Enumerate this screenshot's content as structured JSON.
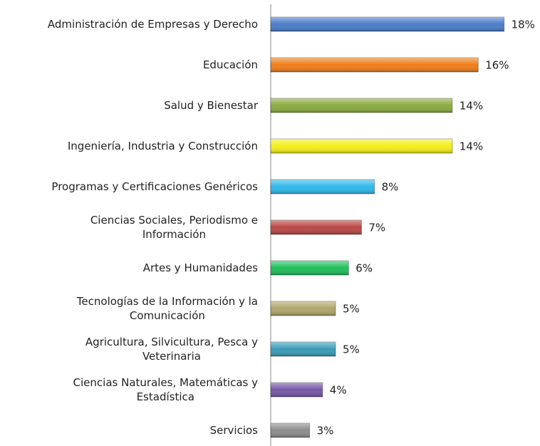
{
  "chart_data": {
    "type": "bar",
    "orientation": "horizontal",
    "categories": [
      "Administración de Empresas y Derecho",
      "Educación",
      "Salud y Bienestar",
      "Ingeniería, Industria y Construcción",
      "Programas y Certificaciones Genéricos",
      "Ciencias Sociales, Periodismo e\nInformación",
      "Artes y Humanidades",
      "Tecnologías de la Información y la\nComunicación",
      "Agricultura, Silvicultura, Pesca y\nVeterinaria",
      "Ciencias Naturales, Matemáticas y\nEstadística",
      "Servicios"
    ],
    "values": [
      18,
      16,
      14,
      14,
      8,
      7,
      6,
      5,
      5,
      4,
      3
    ],
    "value_labels": [
      "18%",
      "16%",
      "14%",
      "14%",
      "8%",
      "7%",
      "6%",
      "5%",
      "5%",
      "4%",
      "3%"
    ],
    "colors": [
      "#4a7cc9",
      "#f07d1a",
      "#8aab3f",
      "#f4ef1a",
      "#2fb8ea",
      "#b84744",
      "#1fbf5c",
      "#b0a46a",
      "#3a9bb8",
      "#7656a6",
      "#8c8c8c"
    ]
  }
}
